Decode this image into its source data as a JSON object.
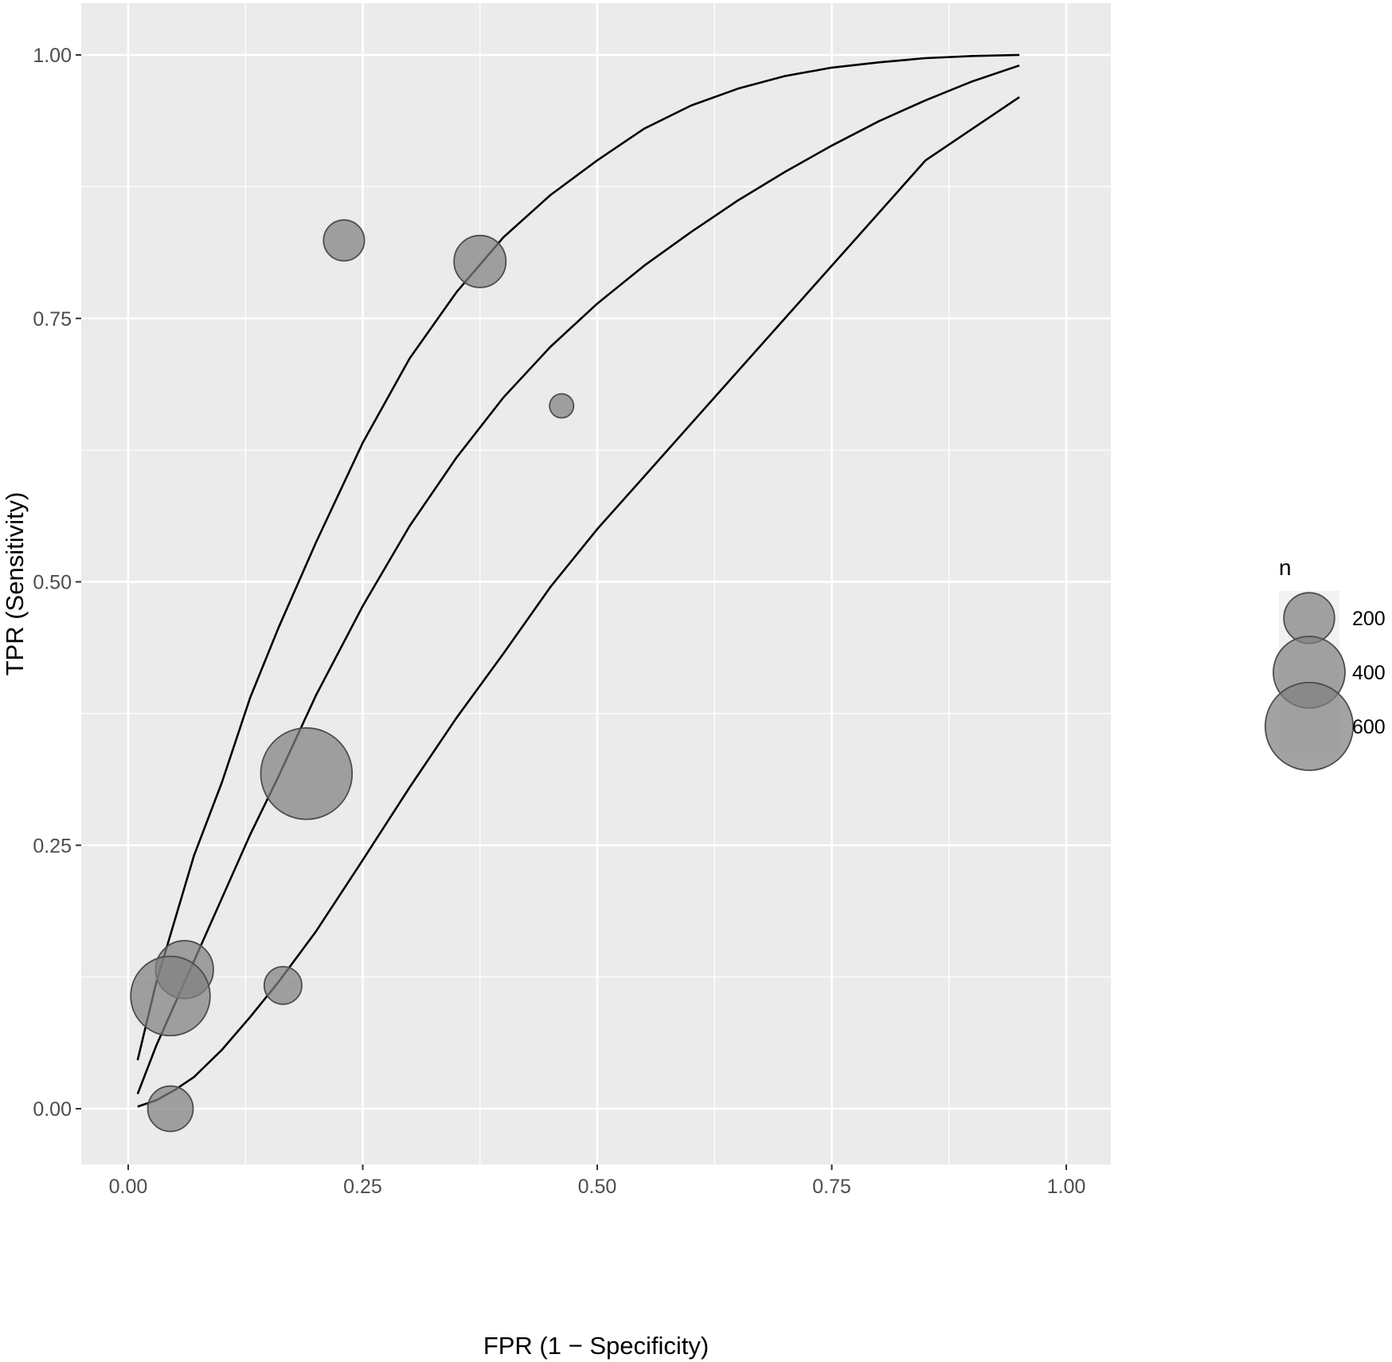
{
  "chart_data": {
    "type": "scatter",
    "title": "",
    "xlabel": "FPR (1 − Specificity)",
    "ylabel": "TPR (Sensitivity)",
    "xlim": [
      -0.05,
      1.05
    ],
    "ylim": [
      -0.05,
      1.05
    ],
    "x_ticks": [
      0.0,
      0.25,
      0.5,
      0.75,
      1.0
    ],
    "x_tick_labels": [
      "0.00",
      "0.25",
      "0.50",
      "0.75",
      "1.00"
    ],
    "y_ticks": [
      0.0,
      0.25,
      0.5,
      0.75,
      1.0
    ],
    "y_tick_labels": [
      "0.00",
      "0.25",
      "0.50",
      "0.75",
      "1.00"
    ],
    "grid": true,
    "points": [
      {
        "x": 0.23,
        "y": 0.824,
        "n": 130
      },
      {
        "x": 0.375,
        "y": 0.804,
        "n": 210
      },
      {
        "x": 0.462,
        "y": 0.667,
        "n": 45
      },
      {
        "x": 0.19,
        "y": 0.318,
        "n": 650
      },
      {
        "x": 0.06,
        "y": 0.132,
        "n": 260
      },
      {
        "x": 0.045,
        "y": 0.107,
        "n": 490
      },
      {
        "x": 0.165,
        "y": 0.117,
        "n": 110
      },
      {
        "x": 0.045,
        "y": 0.0,
        "n": 160
      }
    ],
    "curves": [
      {
        "x": [
          0.01,
          0.03,
          0.05,
          0.07,
          0.1,
          0.13,
          0.16,
          0.2,
          0.25,
          0.3,
          0.35,
          0.4,
          0.45,
          0.5,
          0.55,
          0.6,
          0.65,
          0.7,
          0.75,
          0.8,
          0.85,
          0.9,
          0.95
        ],
        "y": [
          0.046,
          0.12,
          0.18,
          0.24,
          0.31,
          0.39,
          0.456,
          0.537,
          0.632,
          0.712,
          0.775,
          0.827,
          0.867,
          0.9,
          0.93,
          0.952,
          0.968,
          0.98,
          0.988,
          0.993,
          0.997,
          0.999,
          1.0
        ]
      },
      {
        "x": [
          0.01,
          0.03,
          0.05,
          0.07,
          0.1,
          0.13,
          0.16,
          0.2,
          0.25,
          0.3,
          0.35,
          0.4,
          0.45,
          0.5,
          0.55,
          0.6,
          0.65,
          0.7,
          0.75,
          0.8,
          0.85,
          0.9,
          0.95
        ],
        "y": [
          0.014,
          0.06,
          0.1,
          0.14,
          0.2,
          0.26,
          0.315,
          0.392,
          0.477,
          0.553,
          0.618,
          0.675,
          0.723,
          0.764,
          0.8,
          0.832,
          0.862,
          0.889,
          0.914,
          0.937,
          0.957,
          0.975,
          0.99
        ]
      },
      {
        "x": [
          0.01,
          0.03,
          0.05,
          0.07,
          0.1,
          0.13,
          0.16,
          0.2,
          0.25,
          0.3,
          0.35,
          0.4,
          0.45,
          0.5,
          0.55,
          0.6,
          0.65,
          0.7,
          0.75,
          0.8,
          0.85,
          0.9,
          0.95
        ],
        "y": [
          0.002,
          0.008,
          0.018,
          0.03,
          0.056,
          0.087,
          0.12,
          0.168,
          0.236,
          0.305,
          0.371,
          0.432,
          0.495,
          0.55,
          0.6,
          0.65,
          0.7,
          0.75,
          0.8,
          0.85,
          0.9,
          0.93,
          0.96
        ]
      }
    ],
    "legend": {
      "title": "n",
      "position": "right",
      "entries": [
        {
          "label": "200",
          "n": 200
        },
        {
          "label": "400",
          "n": 400
        },
        {
          "label": "600",
          "n": 600
        }
      ]
    },
    "colors": {
      "panel_background": "#ebebeb",
      "grid": "#ffffff",
      "point_fill": "#7f7f7f",
      "point_stroke": "#4d4d4d",
      "curve": "#000000",
      "legend_key_background": "#f2f2f2"
    }
  }
}
